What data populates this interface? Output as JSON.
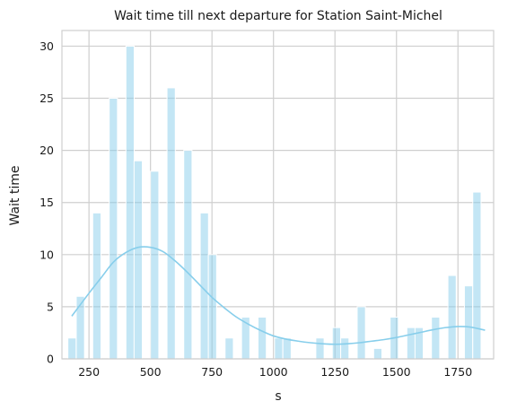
{
  "chart_data": {
    "type": "bar",
    "title": "Wait time till next departure for Station Saint-Michel",
    "xlabel": "s",
    "ylabel": "Wait time",
    "xlim": [
      140,
      1895
    ],
    "ylim": [
      0,
      31.5
    ],
    "xticks": [
      250,
      500,
      750,
      1000,
      1250,
      1500,
      1750
    ],
    "yticks": [
      0,
      5,
      10,
      15,
      20,
      25,
      30
    ],
    "grid": true,
    "bar_color": "#87ceeb",
    "bar_edge_color": "#ffffff",
    "kde_color": "#87ceeb",
    "bin_width": 33.6,
    "bins": [
      {
        "x": 181,
        "value": 2
      },
      {
        "x": 215,
        "value": 6
      },
      {
        "x": 282,
        "value": 14
      },
      {
        "x": 349,
        "value": 25
      },
      {
        "x": 417,
        "value": 30
      },
      {
        "x": 450,
        "value": 19
      },
      {
        "x": 517,
        "value": 18
      },
      {
        "x": 584,
        "value": 26
      },
      {
        "x": 652,
        "value": 20
      },
      {
        "x": 719,
        "value": 14
      },
      {
        "x": 752,
        "value": 10
      },
      {
        "x": 820,
        "value": 2
      },
      {
        "x": 887,
        "value": 4
      },
      {
        "x": 954,
        "value": 4
      },
      {
        "x": 1021,
        "value": 2
      },
      {
        "x": 1055,
        "value": 2
      },
      {
        "x": 1189,
        "value": 2
      },
      {
        "x": 1256,
        "value": 3
      },
      {
        "x": 1290,
        "value": 2
      },
      {
        "x": 1357,
        "value": 5
      },
      {
        "x": 1424,
        "value": 1
      },
      {
        "x": 1491,
        "value": 4
      },
      {
        "x": 1559,
        "value": 3
      },
      {
        "x": 1592,
        "value": 3
      },
      {
        "x": 1659,
        "value": 4
      },
      {
        "x": 1726,
        "value": 8
      },
      {
        "x": 1793,
        "value": 7
      },
      {
        "x": 1827,
        "value": 16
      }
    ],
    "kde": {
      "x": [
        180,
        250,
        300,
        350,
        400,
        450,
        500,
        550,
        600,
        650,
        700,
        750,
        800,
        850,
        900,
        950,
        1000,
        1050,
        1100,
        1150,
        1200,
        1250,
        1300,
        1350,
        1400,
        1450,
        1500,
        1550,
        1600,
        1650,
        1700,
        1750,
        1800,
        1860
      ],
      "y": [
        4.1,
        6.3,
        7.8,
        9.3,
        10.2,
        10.7,
        10.7,
        10.3,
        9.4,
        8.3,
        7.1,
        5.9,
        4.9,
        4.0,
        3.3,
        2.7,
        2.2,
        1.9,
        1.7,
        1.55,
        1.45,
        1.4,
        1.45,
        1.55,
        1.7,
        1.85,
        2.05,
        2.3,
        2.55,
        2.8,
        3.0,
        3.1,
        3.05,
        2.75
      ]
    }
  }
}
